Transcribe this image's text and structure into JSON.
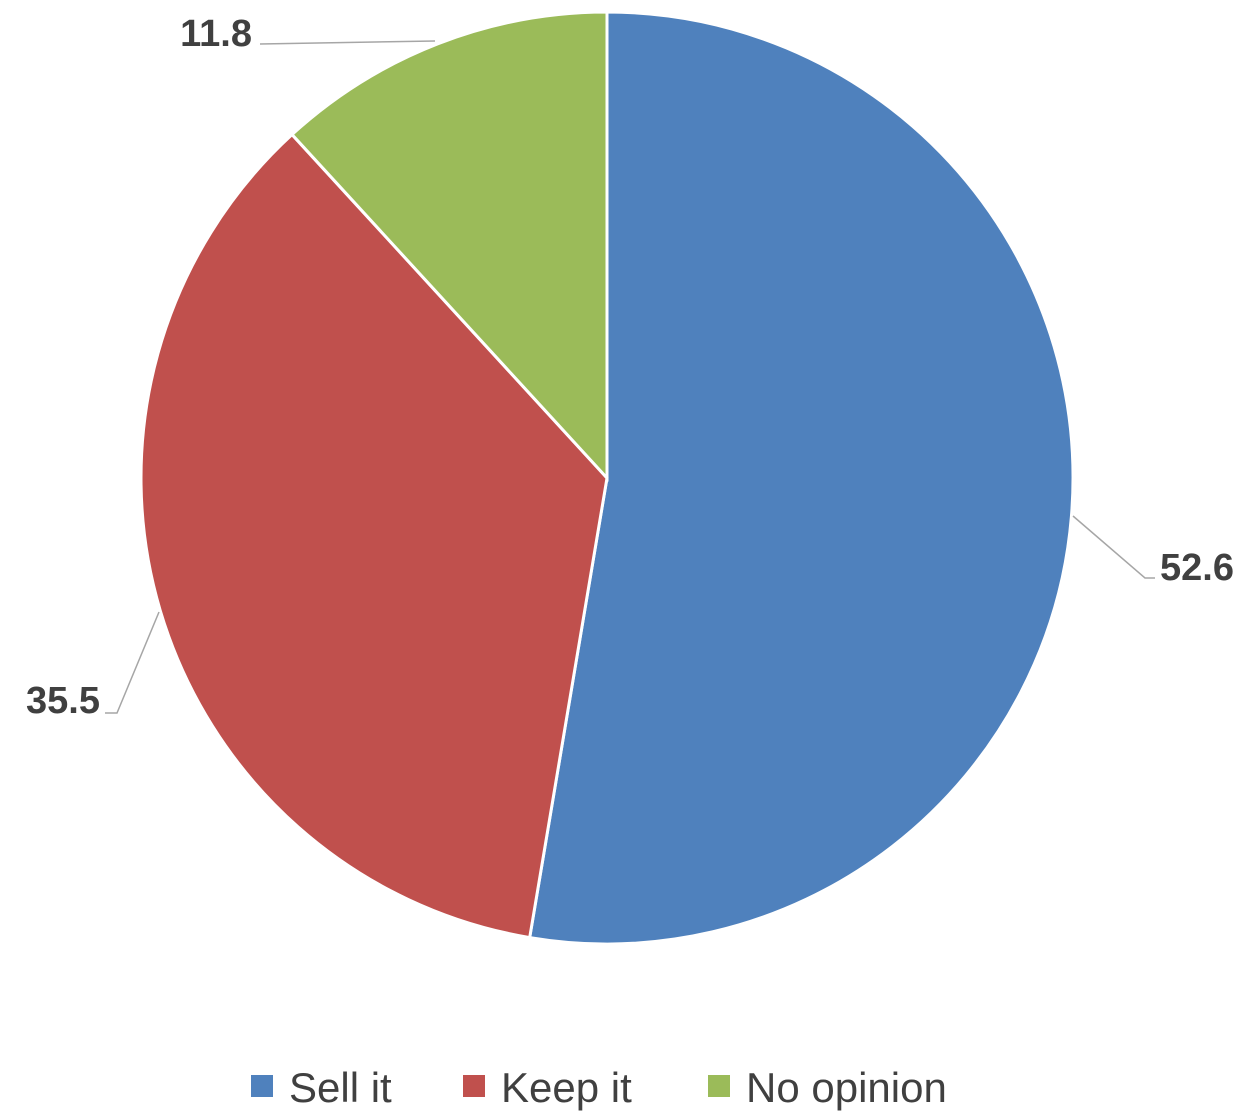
{
  "chart_data": {
    "type": "pie",
    "categories": [
      "Sell it",
      "Keep it",
      "No opinion"
    ],
    "values": [
      52.6,
      35.5,
      11.8
    ],
    "data_labels": [
      "52.6",
      "35.5",
      "11.8"
    ],
    "colors": [
      "#4f81bd",
      "#c0504d",
      "#9bbb59"
    ],
    "start_angle_deg": 0,
    "direction": "clockwise",
    "legend_position": "bottom",
    "title": ""
  }
}
